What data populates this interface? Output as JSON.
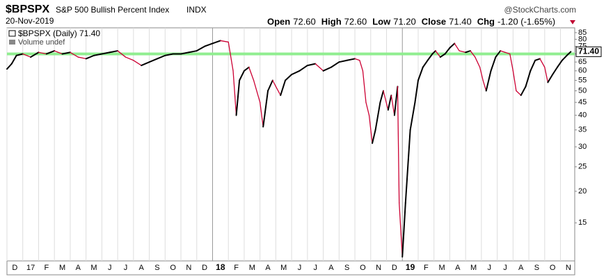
{
  "header": {
    "ticker": "$BPSPX",
    "name": "S&P 500 Bullish Percent Index",
    "exchange": "INDX",
    "source": "@StockCharts.com",
    "date": "20-Nov-2019",
    "ohlc": [
      {
        "label": "Open",
        "value": "72.60"
      },
      {
        "label": "High",
        "value": "72.60"
      },
      {
        "label": "Low",
        "value": "71.20"
      },
      {
        "label": "Close",
        "value": "71.40"
      },
      {
        "label": "Chg",
        "value": "-1.20 (-1.65%)"
      }
    ]
  },
  "chart_data": {
    "type": "line",
    "log_scale": true,
    "grid": "x",
    "xlim": [
      0,
      35.9
    ],
    "ylim": [
      10.6,
      88.8
    ],
    "yticks": [
      15,
      20,
      25,
      30,
      35,
      40,
      45,
      50,
      55,
      60,
      65,
      70,
      75,
      80,
      85
    ],
    "xticks": [
      {
        "value": 0,
        "label": "D"
      },
      {
        "value": 1,
        "label": "17"
      },
      {
        "value": 2,
        "label": "F"
      },
      {
        "value": 3,
        "label": "M"
      },
      {
        "value": 4,
        "label": "A"
      },
      {
        "value": 5,
        "label": "M"
      },
      {
        "value": 6,
        "label": "J"
      },
      {
        "value": 7,
        "label": "J"
      },
      {
        "value": 8,
        "label": "A"
      },
      {
        "value": 9,
        "label": "S"
      },
      {
        "value": 10,
        "label": "O"
      },
      {
        "value": 11,
        "label": "N"
      },
      {
        "value": 12,
        "label": "D"
      },
      {
        "value": 13,
        "label": "18"
      },
      {
        "value": 14,
        "label": "F"
      },
      {
        "value": 15,
        "label": "M"
      },
      {
        "value": 16,
        "label": "A"
      },
      {
        "value": 17,
        "label": "M"
      },
      {
        "value": 18,
        "label": "J"
      },
      {
        "value": 19,
        "label": "J"
      },
      {
        "value": 20,
        "label": "A"
      },
      {
        "value": 21,
        "label": "S"
      },
      {
        "value": 22,
        "label": "O"
      },
      {
        "value": 23,
        "label": "N"
      },
      {
        "value": 24,
        "label": "D"
      },
      {
        "value": 25,
        "label": "19"
      },
      {
        "value": 26,
        "label": "F"
      },
      {
        "value": 27,
        "label": "M"
      },
      {
        "value": 28,
        "label": "A"
      },
      {
        "value": 29,
        "label": "M"
      },
      {
        "value": 30,
        "label": "J"
      },
      {
        "value": 31,
        "label": "J"
      },
      {
        "value": 32,
        "label": "A"
      },
      {
        "value": 33,
        "label": "S"
      },
      {
        "value": 34,
        "label": "O"
      },
      {
        "value": 35,
        "label": "N"
      }
    ],
    "year_ticks": [
      13,
      25
    ],
    "reference_line": {
      "value": 70,
      "color": "#90ee90"
    },
    "up_color": "#000000",
    "down_color": "#cc0033",
    "volume_note": "Volume undef",
    "series": [
      {
        "name": "$BPSPX (Daily) 71.40",
        "last_value_label": "71.40",
        "x": [
          0,
          0.3,
          0.6,
          1.0,
          1.5,
          2.0,
          2.5,
          3.0,
          3.5,
          4.0,
          4.5,
          5.0,
          5.5,
          6.0,
          6.5,
          7.0,
          7.5,
          8.0,
          8.5,
          9.0,
          9.5,
          10.0,
          10.5,
          11.0,
          11.5,
          12.0,
          12.5,
          13.0,
          13.5,
          14.0,
          14.3,
          14.5,
          14.7,
          15.0,
          15.3,
          15.6,
          16.0,
          16.2,
          16.5,
          16.8,
          17.0,
          17.3,
          17.6,
          18.0,
          18.5,
          19.0,
          19.5,
          20.0,
          20.5,
          21.0,
          21.5,
          22.0,
          22.3,
          22.5,
          22.7,
          22.9,
          23.1,
          23.3,
          23.6,
          23.8,
          24.1,
          24.3,
          24.5,
          24.7,
          24.8,
          25.0,
          25.2,
          25.5,
          25.8,
          26.0,
          26.3,
          26.6,
          26.9,
          27.1,
          27.4,
          27.7,
          28.0,
          28.3,
          28.6,
          29.0,
          29.3,
          29.6,
          29.9,
          30.1,
          30.3,
          30.6,
          30.9,
          31.2,
          31.5,
          31.8,
          32.0,
          32.2,
          32.5,
          32.8,
          33.1,
          33.4,
          33.7,
          34.0,
          34.2,
          34.5,
          34.8,
          35.1,
          35.4,
          35.65
        ],
        "values": [
          61,
          64,
          69,
          70,
          68,
          71,
          70,
          72,
          70,
          71,
          68,
          67,
          69,
          70,
          71,
          72,
          68,
          66,
          63,
          65,
          67,
          69,
          70,
          70,
          71,
          72,
          75,
          77,
          79,
          78,
          60,
          40,
          55,
          60,
          62,
          55,
          45,
          36,
          50,
          55,
          52,
          48,
          55,
          58,
          60,
          63,
          64,
          60,
          62,
          65,
          66,
          67,
          66,
          60,
          45,
          40,
          31,
          35,
          45,
          50,
          42,
          48,
          40,
          52,
          18,
          11,
          18,
          35,
          45,
          55,
          62,
          66,
          70,
          72,
          68,
          70,
          74,
          77,
          72,
          71,
          72,
          68,
          62,
          55,
          50,
          60,
          68,
          72,
          71,
          70,
          60,
          50,
          48,
          52,
          60,
          66,
          67,
          62,
          54,
          58,
          62,
          66,
          69,
          71.4
        ]
      }
    ]
  }
}
